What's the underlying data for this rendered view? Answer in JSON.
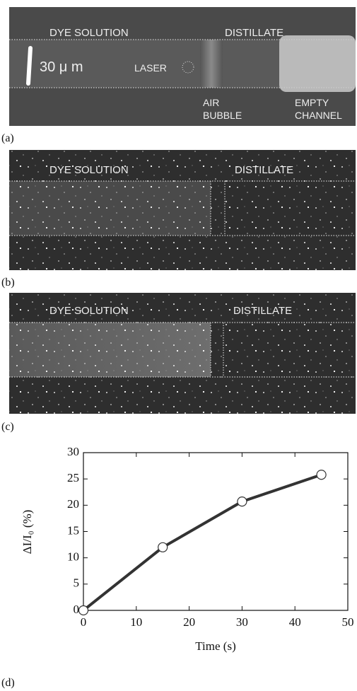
{
  "panels": [
    {
      "label": "(a)",
      "texts": {
        "dye": "DYE SOLUTION",
        "distillate": "DISTILLATE",
        "scale": "30 μ m",
        "laser": "LASER",
        "air": [
          "AIR",
          "BUBBLE"
        ],
        "empty": [
          "EMPTY",
          "CHANNEL"
        ]
      }
    },
    {
      "label": "(b)",
      "texts": {
        "dye": "DYE SOLUTION",
        "distillate": "DISTILLATE"
      }
    },
    {
      "label": "(c)",
      "texts": {
        "dye": "DYE SOLUTION",
        "distillate": "DISTILLATE"
      }
    }
  ],
  "chart_data": {
    "type": "line",
    "label": "(d)",
    "xlabel": "Time (s)",
    "ylabel": "ΔI/I₀ (%)",
    "x": [
      0,
      15,
      30,
      45
    ],
    "values": [
      0,
      12,
      20.7,
      25.8
    ],
    "color": "#333333",
    "xlim": [
      0,
      50
    ],
    "xticks": [
      0,
      10,
      20,
      30,
      40,
      50
    ],
    "ylim": [
      0,
      30
    ],
    "yticks": [
      0,
      5,
      10,
      15,
      20,
      25,
      30
    ]
  }
}
